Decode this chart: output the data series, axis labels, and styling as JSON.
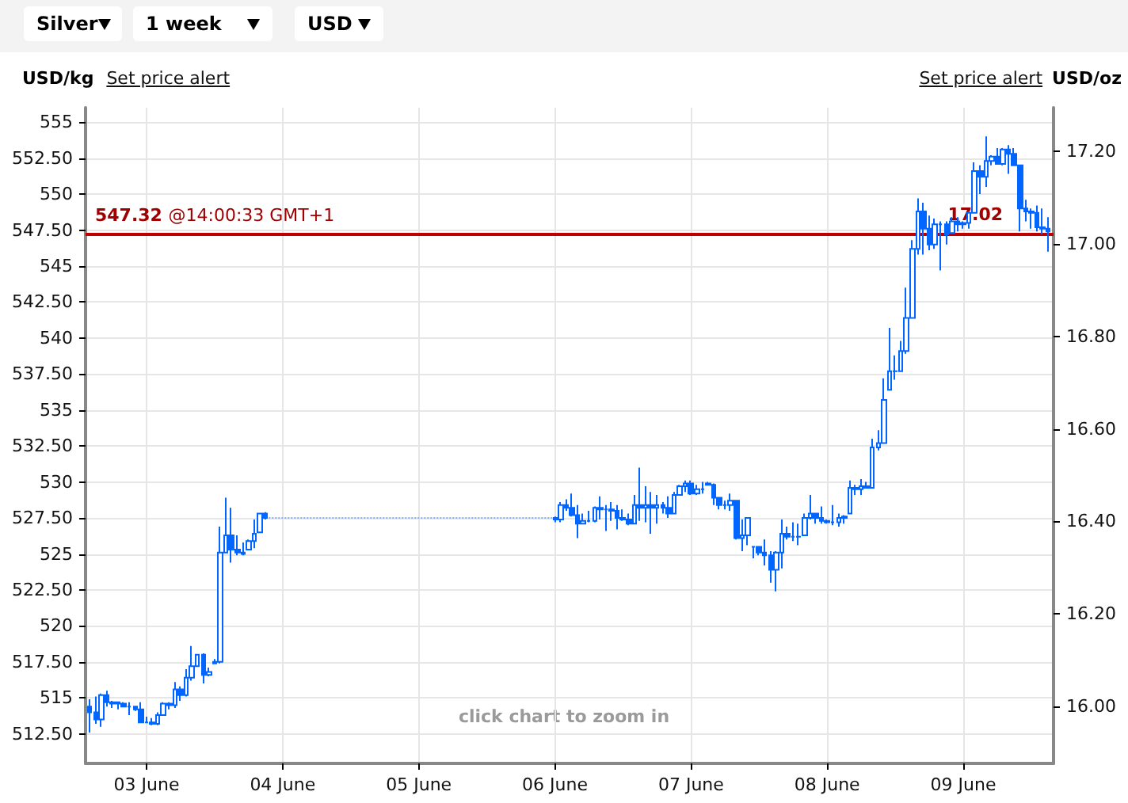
{
  "chart_data": {
    "type": "candlestick",
    "color": "#0066ff",
    "ylabel": "USD/kg",
    "y2label": "USD/oz",
    "annotations": [
      "Silver",
      "1 week",
      "USD",
      "Set price alert",
      "Set price alert",
      "click chart to zoom in"
    ],
    "x": [
      "--06-02T14:00",
      "--06-02T15:00",
      "--06-02T16:00",
      "--06-02T17:00",
      "--06-02T18:00",
      "--06-02T19:00",
      "--06-02T20:00",
      "--06-02T21:00",
      "--06-02T22:00",
      "--06-02T23:00",
      "--06-03T00:00",
      "--06-03T01:00",
      "--06-03T02:00",
      "--06-03T03:00",
      "--06-03T04:00",
      "--06-03T05:00",
      "--06-03T06:00",
      "--06-03T07:00",
      "--06-03T08:00",
      "--06-03T09:00",
      "--06-03T10:00",
      "--06-03T11:00",
      "--06-03T12:00",
      "--06-03T13:00",
      "--06-03T14:00",
      "--06-03T15:00",
      "--06-03T16:00",
      "--06-03T17:00",
      "--06-03T18:00",
      "--06-03T19:00",
      "--06-03T20:00",
      "--06-03T21:00",
      "--06-06T00:00",
      "--06-06T01:00",
      "--06-06T02:00",
      "--06-06T03:00",
      "--06-06T04:00",
      "--06-06T05:00",
      "--06-06T06:00",
      "--06-06T07:00",
      "--06-06T08:00",
      "--06-06T09:00",
      "--06-06T10:00",
      "--06-06T11:00",
      "--06-06T12:00",
      "--06-06T13:00",
      "--06-06T14:00",
      "--06-06T15:00",
      "--06-06T16:00",
      "--06-06T17:00",
      "--06-06T18:00",
      "--06-06T19:00",
      "--06-06T20:00",
      "--06-06T21:00",
      "--06-06T22:00",
      "--06-06T23:00",
      "--06-07T00:00",
      "--06-07T01:00",
      "--06-07T02:00",
      "--06-07T03:00",
      "--06-07T04:00",
      "--06-07T05:00",
      "--06-07T06:00",
      "--06-07T07:00",
      "--06-07T08:00",
      "--06-07T09:00",
      "--06-07T10:00",
      "--06-07T11:00",
      "--06-07T12:00",
      "--06-07T13:00",
      "--06-07T14:00",
      "--06-07T15:00",
      "--06-07T16:00",
      "--06-07T17:00",
      "--06-07T18:00",
      "--06-07T19:00",
      "--06-07T20:00",
      "--06-07T21:00",
      "--06-07T22:00",
      "--06-07T23:00",
      "--06-08T00:00",
      "--06-08T01:00",
      "--06-08T02:00",
      "--06-08T03:00",
      "--06-08T04:00",
      "--06-08T05:00",
      "--06-08T06:00",
      "--06-08T07:00",
      "--06-08T08:00",
      "--06-08T09:00",
      "--06-08T10:00",
      "--06-08T11:00",
      "--06-08T12:00",
      "--06-08T13:00",
      "--06-08T14:00",
      "--06-08T15:00",
      "--06-08T16:00",
      "--06-08T17:00",
      "--06-08T18:00",
      "--06-08T19:00",
      "--06-08T20:00",
      "--06-08T21:00",
      "--06-08T22:00",
      "--06-08T23:00",
      "--06-09T00:00",
      "--06-09T01:00",
      "--06-09T02:00",
      "--06-09T03:00",
      "--06-09T04:00",
      "--06-09T05:00",
      "--06-09T06:00",
      "--06-09T07:00",
      "--06-09T08:00",
      "--06-09T09:00",
      "--06-09T10:00",
      "--06-09T11:00",
      "--06-09T12:00",
      "--06-09T13:00",
      "--06-09T14:00",
      "--06-09T15:00"
    ],
    "ohlc": [
      [
        514.4,
        514.9,
        512.6,
        514.0
      ],
      [
        514.0,
        515.1,
        513.2,
        513.5
      ],
      [
        513.5,
        515.3,
        513.0,
        515.2
      ],
      [
        515.2,
        515.5,
        514.4,
        514.7
      ],
      [
        514.7,
        514.8,
        514.3,
        514.6
      ],
      [
        514.7,
        514.7,
        514.2,
        514.6
      ],
      [
        514.6,
        514.7,
        514.4,
        514.4
      ],
      [
        514.4,
        514.7,
        513.8,
        514.4
      ],
      [
        514.4,
        514.4,
        514.1,
        514.2
      ],
      [
        514.2,
        514.7,
        513.3,
        513.3
      ],
      [
        513.3,
        513.7,
        513.3,
        513.3
      ],
      [
        513.3,
        513.6,
        513.1,
        513.2
      ],
      [
        513.2,
        514.0,
        513.1,
        513.8
      ],
      [
        513.8,
        514.7,
        513.8,
        514.6
      ],
      [
        514.6,
        514.7,
        514.2,
        514.5
      ],
      [
        514.5,
        516.1,
        514.3,
        515.6
      ],
      [
        515.6,
        515.8,
        514.8,
        515.2
      ],
      [
        515.2,
        517.0,
        515.1,
        516.4
      ],
      [
        516.4,
        518.6,
        516.2,
        517.2
      ],
      [
        517.2,
        518.0,
        517.2,
        518.0
      ],
      [
        518.0,
        518.1,
        516.0,
        516.6
      ],
      [
        516.6,
        517.1,
        516.5,
        516.8
      ],
      [
        517.4,
        517.7,
        517.4,
        517.5
      ],
      [
        517.5,
        526.9,
        517.4,
        525.1
      ],
      [
        525.1,
        528.9,
        525.1,
        526.3
      ],
      [
        526.3,
        528.2,
        524.4,
        525.3
      ],
      [
        525.3,
        526.3,
        524.9,
        525.1
      ],
      [
        525.1,
        525.8,
        524.9,
        525.0
      ],
      [
        525.3,
        526.0,
        525.3,
        525.9
      ],
      [
        525.9,
        527.4,
        525.4,
        526.4
      ],
      [
        526.5,
        527.8,
        526.5,
        527.8
      ],
      [
        527.8,
        527.9,
        527.4,
        527.5
      ],
      [
        527.5,
        527.6,
        527.2,
        527.4
      ],
      [
        527.4,
        528.6,
        527.2,
        528.4
      ],
      [
        528.4,
        528.8,
        528.0,
        528.2
      ],
      [
        528.2,
        529.2,
        527.6,
        527.7
      ],
      [
        527.7,
        528.4,
        526.1,
        527.1
      ],
      [
        527.1,
        527.8,
        527.1,
        527.3
      ],
      [
        527.3,
        528.0,
        527.2,
        527.3
      ],
      [
        527.3,
        528.3,
        527.2,
        528.2
      ],
      [
        528.2,
        529.0,
        527.4,
        528.1
      ],
      [
        528.1,
        528.4,
        526.6,
        528.1
      ],
      [
        528.1,
        528.6,
        527.3,
        528.0
      ],
      [
        528.0,
        528.4,
        526.7,
        527.5
      ],
      [
        527.5,
        528.1,
        527.3,
        527.4
      ],
      [
        527.4,
        527.8,
        527.0,
        527.1
      ],
      [
        527.1,
        529.1,
        527.1,
        528.4
      ],
      [
        528.4,
        531.0,
        527.3,
        528.2
      ],
      [
        528.2,
        529.7,
        527.2,
        528.4
      ],
      [
        528.4,
        529.3,
        526.4,
        528.2
      ],
      [
        528.2,
        529.1,
        527.1,
        528.4
      ],
      [
        528.4,
        528.6,
        527.8,
        528.2
      ],
      [
        528.2,
        529.0,
        527.5,
        527.8
      ],
      [
        527.8,
        529.3,
        527.8,
        529.1
      ],
      [
        529.1,
        529.8,
        529.1,
        529.7
      ],
      [
        529.7,
        530.1,
        529.3,
        529.9
      ],
      [
        529.9,
        530.1,
        529.1,
        529.2
      ],
      [
        529.2,
        529.8,
        529.1,
        529.5
      ],
      [
        529.5,
        530.0,
        529.2,
        529.5
      ],
      [
        529.8,
        530.0,
        529.8,
        529.9
      ],
      [
        529.8,
        529.9,
        528.4,
        528.9
      ],
      [
        528.9,
        528.9,
        528.1,
        528.4
      ],
      [
        528.4,
        528.7,
        528.1,
        528.4
      ],
      [
        528.4,
        529.2,
        528.0,
        528.7
      ],
      [
        528.7,
        528.7,
        526.0,
        526.1
      ],
      [
        526.1,
        527.4,
        525.2,
        526.3
      ],
      [
        526.3,
        527.5,
        525.6,
        527.5
      ],
      [
        525.5,
        525.5,
        524.7,
        525.5
      ],
      [
        525.5,
        525.5,
        524.9,
        525.1
      ],
      [
        525.1,
        526.0,
        524.2,
        524.9
      ],
      [
        524.9,
        525.2,
        523.0,
        523.9
      ],
      [
        523.9,
        525.2,
        522.4,
        525.1
      ],
      [
        525.1,
        527.4,
        524.0,
        526.4
      ],
      [
        526.4,
        526.9,
        526.0,
        526.2
      ],
      [
        526.2,
        527.2,
        525.9,
        526.2
      ],
      [
        526.2,
        527.1,
        525.6,
        526.2
      ],
      [
        526.3,
        527.8,
        526.3,
        527.5
      ],
      [
        527.5,
        529.1,
        527.4,
        527.8
      ],
      [
        527.8,
        527.8,
        527.1,
        527.5
      ],
      [
        527.5,
        528.3,
        527.1,
        527.3
      ],
      [
        527.3,
        527.4,
        527.1,
        527.2
      ],
      [
        527.2,
        528.4,
        527.0,
        527.2
      ],
      [
        527.2,
        527.8,
        526.9,
        527.5
      ],
      [
        527.5,
        527.7,
        527.1,
        527.6
      ],
      [
        527.8,
        530.1,
        527.8,
        529.6
      ],
      [
        529.6,
        529.8,
        529.1,
        529.5
      ],
      [
        529.5,
        530.2,
        529.1,
        529.7
      ],
      [
        529.7,
        530.0,
        529.6,
        529.6
      ],
      [
        529.6,
        533.0,
        529.6,
        532.4
      ],
      [
        532.4,
        533.6,
        532.2,
        532.7
      ],
      [
        532.7,
        537.2,
        532.7,
        535.7
      ],
      [
        536.4,
        540.7,
        536.4,
        537.7
      ],
      [
        537.7,
        538.8,
        537.1,
        537.7
      ],
      [
        537.7,
        539.8,
        537.7,
        539.1
      ],
      [
        539.1,
        543.5,
        538.9,
        541.4
      ],
      [
        541.4,
        546.8,
        541.4,
        546.2
      ],
      [
        546.2,
        549.7,
        545.8,
        548.8
      ],
      [
        548.8,
        549.4,
        545.8,
        547.6
      ],
      [
        547.6,
        548.5,
        546.1,
        546.5
      ],
      [
        546.5,
        548.3,
        546.2,
        547.9
      ],
      [
        547.9,
        548.1,
        544.7,
        547.9
      ],
      [
        547.9,
        548.1,
        546.5,
        547.2
      ],
      [
        547.3,
        548.4,
        547.3,
        548.1
      ],
      [
        548.1,
        548.4,
        547.4,
        547.9
      ],
      [
        547.9,
        548.1,
        547.6,
        548.0
      ],
      [
        548.0,
        548.8,
        547.6,
        548.7
      ],
      [
        548.7,
        552.2,
        548.7,
        551.6
      ],
      [
        551.6,
        552.0,
        550.0,
        551.2
      ],
      [
        551.2,
        554.0,
        550.5,
        552.3
      ],
      [
        552.3,
        552.7,
        552.0,
        552.6
      ],
      [
        552.6,
        553.2,
        552.1,
        552.1
      ],
      [
        552.1,
        553.2,
        552.0,
        553.1
      ],
      [
        553.1,
        553.4,
        551.4,
        552.8
      ],
      [
        552.8,
        553.2,
        552.0,
        552.0
      ],
      [
        552.0,
        552.0,
        547.4,
        549.0
      ],
      [
        549.0,
        549.6,
        548.1,
        548.8
      ],
      [
        548.8,
        549.0,
        547.6,
        548.7
      ],
      [
        548.7,
        549.2,
        547.4,
        547.7
      ],
      [
        547.7,
        549.0,
        547.2,
        547.6
      ],
      [
        547.6,
        548.4,
        546.0,
        547.4
      ]
    ],
    "series": [
      {
        "type": "line",
        "x": [
          "--06-03T21:00",
          "--06-06T00:00"
        ],
        "values": [
          527.5,
          527.5
        ],
        "color": "#8ab0f0",
        "line_style": "dotted"
      }
    ],
    "xlim": [
      "--06-02T13:15",
      "--06-09T15:55"
    ],
    "xticks": [
      {
        "value": "--06-03",
        "label": "03 June"
      },
      {
        "value": "--06-04",
        "label": "04 June"
      },
      {
        "value": "--06-05",
        "label": "05 June"
      },
      {
        "value": "--06-06",
        "label": "06 June"
      },
      {
        "value": "--06-07",
        "label": "07 June"
      },
      {
        "value": "--06-08",
        "label": "08 June"
      },
      {
        "value": "--06-09",
        "label": "09 June"
      }
    ],
    "ylim": [
      510.45,
      556
    ],
    "yticks": [
      {
        "value": 512.5,
        "label": "512.50"
      },
      515,
      {
        "value": 517.5,
        "label": "517.50"
      },
      520,
      {
        "value": 522.5,
        "label": "522.50"
      },
      525,
      {
        "value": 527.5,
        "label": "527.50"
      },
      530,
      {
        "value": 532.5,
        "label": "532.50"
      },
      535,
      {
        "value": 537.5,
        "label": "537.50"
      },
      540,
      {
        "value": 542.5,
        "label": "542.50"
      },
      545,
      {
        "value": 547.5,
        "label": "547.50"
      },
      550,
      {
        "value": 552.5,
        "label": "552.50"
      },
      555
    ],
    "y2lim": [
      15.877,
      17.294
    ],
    "y2ticks": [
      {
        "value": 16,
        "label": "16.00"
      },
      {
        "value": 16.2,
        "label": "16.20"
      },
      {
        "value": 16.4,
        "label": "16.40"
      },
      {
        "value": 16.6,
        "label": "16.60"
      },
      {
        "value": 16.8,
        "label": "16.80"
      },
      {
        "value": 17,
        "label": "17.00"
      },
      {
        "value": 17.2,
        "label": "17.20"
      }
    ],
    "ref_lines": [
      {
        "axis": "y",
        "value": 547.32,
        "label": "547.32 @14:00:33 GMT+1",
        "color": "#c00000"
      },
      {
        "axis": "y2",
        "value": 17.02,
        "label": "17.02",
        "color": "#c00000"
      }
    ],
    "grid": true
  }
}
